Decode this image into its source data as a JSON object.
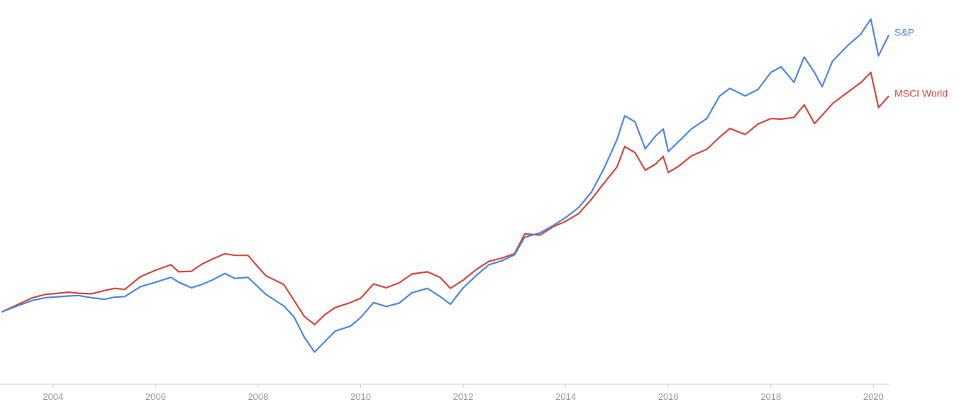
{
  "chart_data": {
    "type": "line",
    "title": "",
    "xlabel": "",
    "ylabel": "",
    "xlim": [
      2003.0,
      2020.3
    ],
    "x_ticks": [
      "2004",
      "2006",
      "2008",
      "2010",
      "2012",
      "2014",
      "2016",
      "2018",
      "2020"
    ],
    "y_axis_visible": false,
    "grid": false,
    "legend": "inline labels at line ends (right)",
    "series": [
      {
        "name": "S&P",
        "color": "#4a86e8",
        "points": [
          [
            2003.0,
            0.0
          ],
          [
            2003.3,
            1.1
          ],
          [
            2003.6,
            2.1
          ],
          [
            2003.85,
            2.6
          ],
          [
            2004.0,
            2.7
          ],
          [
            2004.3,
            2.9
          ],
          [
            2004.5,
            3.0
          ],
          [
            2004.75,
            2.6
          ],
          [
            2005.0,
            2.3
          ],
          [
            2005.2,
            2.7
          ],
          [
            2005.4,
            2.8
          ],
          [
            2005.7,
            4.6
          ],
          [
            2006.0,
            5.4
          ],
          [
            2006.3,
            6.3
          ],
          [
            2006.45,
            5.4
          ],
          [
            2006.7,
            4.4
          ],
          [
            2006.9,
            5.0
          ],
          [
            2007.1,
            5.8
          ],
          [
            2007.35,
            7.0
          ],
          [
            2007.55,
            6.1
          ],
          [
            2007.8,
            6.3
          ],
          [
            2007.95,
            5.0
          ],
          [
            2008.15,
            3.2
          ],
          [
            2008.5,
            1.1
          ],
          [
            2008.7,
            -0.9
          ],
          [
            2008.9,
            -4.6
          ],
          [
            2009.1,
            -7.3
          ],
          [
            2009.3,
            -5.4
          ],
          [
            2009.5,
            -3.5
          ],
          [
            2009.8,
            -2.6
          ],
          [
            2010.0,
            -1.0
          ],
          [
            2010.25,
            1.7
          ],
          [
            2010.5,
            1.0
          ],
          [
            2010.75,
            1.6
          ],
          [
            2011.0,
            3.5
          ],
          [
            2011.3,
            4.3
          ],
          [
            2011.55,
            2.8
          ],
          [
            2011.75,
            1.4
          ],
          [
            2012.0,
            4.4
          ],
          [
            2012.25,
            6.6
          ],
          [
            2012.5,
            8.6
          ],
          [
            2012.75,
            9.3
          ],
          [
            2013.0,
            10.4
          ],
          [
            2013.2,
            13.6
          ],
          [
            2013.5,
            14.4
          ],
          [
            2013.75,
            15.7
          ],
          [
            2014.0,
            17.2
          ],
          [
            2014.25,
            19.0
          ],
          [
            2014.5,
            21.8
          ],
          [
            2014.75,
            26.2
          ],
          [
            2015.0,
            31.4
          ],
          [
            2015.15,
            35.7
          ],
          [
            2015.35,
            34.6
          ],
          [
            2015.55,
            29.7
          ],
          [
            2015.75,
            32.0
          ],
          [
            2015.9,
            33.3
          ],
          [
            2016.0,
            29.2
          ],
          [
            2016.2,
            31.0
          ],
          [
            2016.45,
            33.3
          ],
          [
            2016.75,
            35.2
          ],
          [
            2017.0,
            39.3
          ],
          [
            2017.2,
            40.7
          ],
          [
            2017.5,
            39.3
          ],
          [
            2017.75,
            40.5
          ],
          [
            2018.0,
            43.6
          ],
          [
            2018.2,
            44.6
          ],
          [
            2018.45,
            41.8
          ],
          [
            2018.65,
            46.4
          ],
          [
            2018.85,
            43.6
          ],
          [
            2019.0,
            41.0
          ],
          [
            2019.2,
            45.6
          ],
          [
            2019.5,
            48.5
          ],
          [
            2019.75,
            50.5
          ],
          [
            2019.95,
            53.3
          ],
          [
            2020.1,
            46.6
          ],
          [
            2020.3,
            50.4
          ]
        ]
      },
      {
        "name": "MSCI World",
        "color": "#d9453a",
        "points": [
          [
            2003.0,
            0.0
          ],
          [
            2003.3,
            1.3
          ],
          [
            2003.6,
            2.6
          ],
          [
            2003.85,
            3.2
          ],
          [
            2004.0,
            3.3
          ],
          [
            2004.3,
            3.6
          ],
          [
            2004.5,
            3.4
          ],
          [
            2004.75,
            3.3
          ],
          [
            2005.0,
            3.9
          ],
          [
            2005.2,
            4.3
          ],
          [
            2005.4,
            4.1
          ],
          [
            2005.7,
            6.4
          ],
          [
            2006.0,
            7.6
          ],
          [
            2006.3,
            8.6
          ],
          [
            2006.45,
            7.3
          ],
          [
            2006.7,
            7.4
          ],
          [
            2006.9,
            8.7
          ],
          [
            2007.1,
            9.6
          ],
          [
            2007.35,
            10.6
          ],
          [
            2007.55,
            10.3
          ],
          [
            2007.8,
            10.3
          ],
          [
            2007.95,
            8.7
          ],
          [
            2008.15,
            6.6
          ],
          [
            2008.5,
            5.0
          ],
          [
            2008.7,
            2.1
          ],
          [
            2008.9,
            -0.8
          ],
          [
            2009.1,
            -2.3
          ],
          [
            2009.3,
            -0.5
          ],
          [
            2009.5,
            0.8
          ],
          [
            2009.8,
            1.7
          ],
          [
            2010.0,
            2.5
          ],
          [
            2010.25,
            5.1
          ],
          [
            2010.5,
            4.4
          ],
          [
            2010.75,
            5.3
          ],
          [
            2011.0,
            6.9
          ],
          [
            2011.3,
            7.3
          ],
          [
            2011.55,
            6.3
          ],
          [
            2011.75,
            4.3
          ],
          [
            2012.0,
            5.8
          ],
          [
            2012.25,
            7.7
          ],
          [
            2012.5,
            9.2
          ],
          [
            2012.75,
            9.8
          ],
          [
            2013.0,
            10.6
          ],
          [
            2013.2,
            14.2
          ],
          [
            2013.5,
            14.0
          ],
          [
            2013.75,
            15.5
          ],
          [
            2014.0,
            16.5
          ],
          [
            2014.25,
            17.9
          ],
          [
            2014.5,
            20.5
          ],
          [
            2014.75,
            23.5
          ],
          [
            2015.0,
            26.4
          ],
          [
            2015.15,
            30.1
          ],
          [
            2015.35,
            29.0
          ],
          [
            2015.55,
            25.8
          ],
          [
            2015.75,
            26.9
          ],
          [
            2015.9,
            28.3
          ],
          [
            2016.0,
            25.4
          ],
          [
            2016.2,
            26.5
          ],
          [
            2016.45,
            28.4
          ],
          [
            2016.75,
            29.6
          ],
          [
            2017.0,
            31.8
          ],
          [
            2017.2,
            33.4
          ],
          [
            2017.5,
            32.3
          ],
          [
            2017.75,
            34.2
          ],
          [
            2018.0,
            35.2
          ],
          [
            2018.2,
            35.1
          ],
          [
            2018.45,
            35.4
          ],
          [
            2018.65,
            37.7
          ],
          [
            2018.85,
            34.3
          ],
          [
            2019.0,
            35.8
          ],
          [
            2019.2,
            37.9
          ],
          [
            2019.5,
            40.0
          ],
          [
            2019.75,
            41.7
          ],
          [
            2019.95,
            43.6
          ],
          [
            2020.1,
            37.2
          ],
          [
            2020.3,
            39.3
          ]
        ]
      }
    ]
  }
}
